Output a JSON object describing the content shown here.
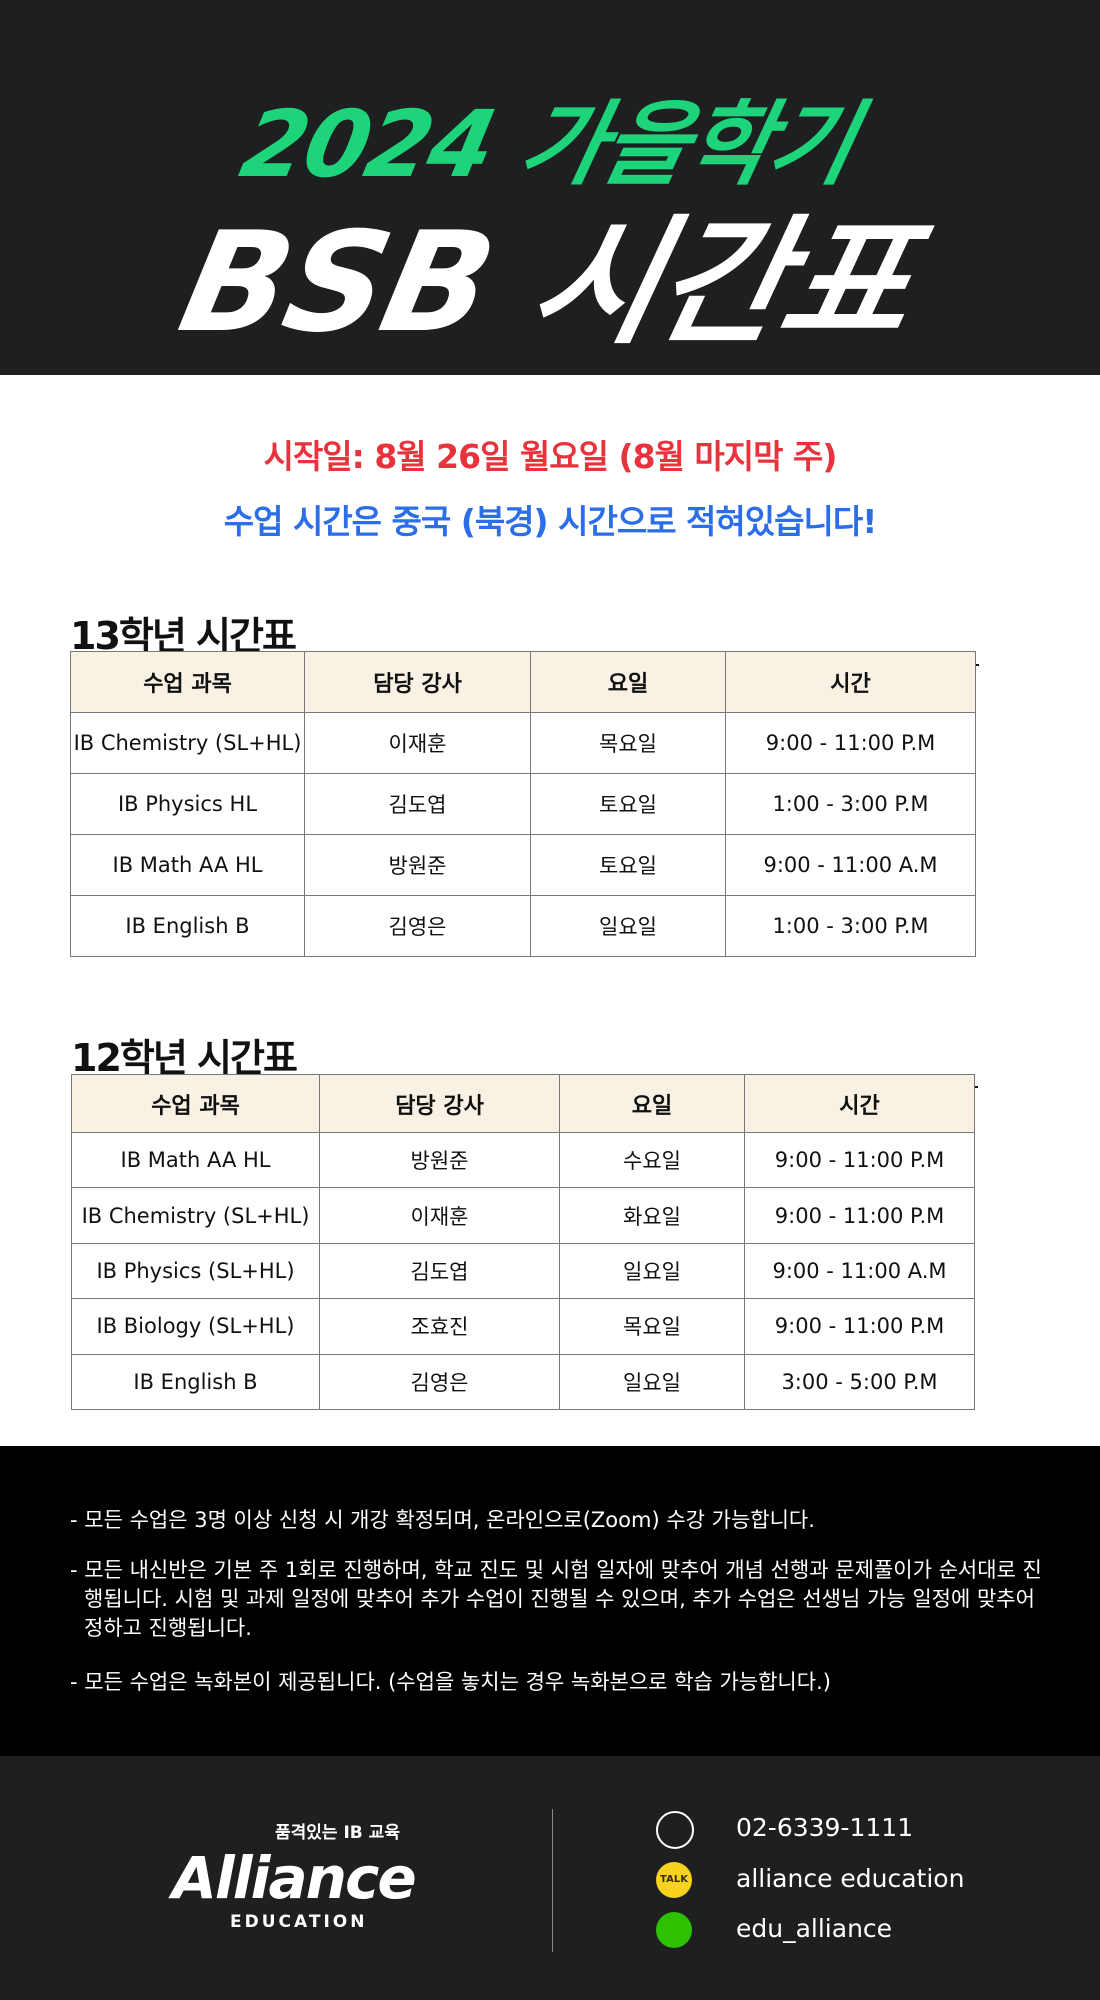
{
  "header": {
    "title_line1": "2024 가을학기",
    "title_line2": "BSB 시간표"
  },
  "notice": {
    "start_date": "시작일: 8월 26일 월요일 (8월 마지막 주)",
    "time_zone": "수업 시간은 중국 (북경) 시간으로 적혀있습니다!"
  },
  "tables": [
    {
      "heading": "13학년 시간표",
      "columns": [
        "수업 과목",
        "담당 강사",
        "요일",
        "시간"
      ],
      "rows": [
        [
          "IB Chemistry (SL+HL)",
          "이재훈",
          "목요일",
          "9:00 - 11:00 P.M"
        ],
        [
          "IB Physics HL",
          "김도엽",
          "토요일",
          "1:00 - 3:00 P.M"
        ],
        [
          "IB Math AA HL",
          "방원준",
          "토요일",
          "9:00 - 11:00 A.M"
        ],
        [
          "IB English B",
          "김영은",
          "일요일",
          "1:00 - 3:00 P.M"
        ]
      ]
    },
    {
      "heading": "12학년 시간표",
      "columns": [
        "수업 과목",
        "담당 강사",
        "요일",
        "시간"
      ],
      "rows": [
        [
          "IB Math AA HL",
          "방원준",
          "수요일",
          "9:00 - 11:00 P.M"
        ],
        [
          "IB Chemistry (SL+HL)",
          "이재훈",
          "화요일",
          "9:00 - 11:00 P.M"
        ],
        [
          "IB Physics (SL+HL)",
          "김도엽",
          "일요일",
          "9:00  -  11:00 A.M"
        ],
        [
          "IB Biology (SL+HL)",
          "조효진",
          "목요일",
          "9:00 - 11:00 P.M"
        ],
        [
          "IB English B",
          "김영은",
          "일요일",
          "3:00 - 5:00 P.M"
        ]
      ]
    }
  ],
  "notes": [
    "- 모든 수업은 3명 이상 신청 시 개강 확정되며, 온라인으로(Zoom) 수강 가능합니다.",
    "- 모든 내신반은 기본 주 1회로 진행하며, 학교 진도 및 시험 일자에 맞추어 개념 선행과 문제풀이가 순서대로 진행됩니다. 시험 및 과제 일정에 맞추어 추가 수업이 진행될 수 있으며, 추가 수업은 선생님 가능 일정에 맞추어 정하고 진행됩니다.",
    "- 모든 수업은 녹화본이 제공됩니다. (수업을 놓치는 경우 녹화본으로 학습 가능합니다.)"
  ],
  "footer": {
    "tagline": "품격있는 IB 교육",
    "brand": "Alliance",
    "brand_sub": "EDUCATION",
    "kakao_icon": "TALK",
    "contacts": [
      "02-6339-1111",
      "alliance education",
      "edu_alliance"
    ]
  }
}
